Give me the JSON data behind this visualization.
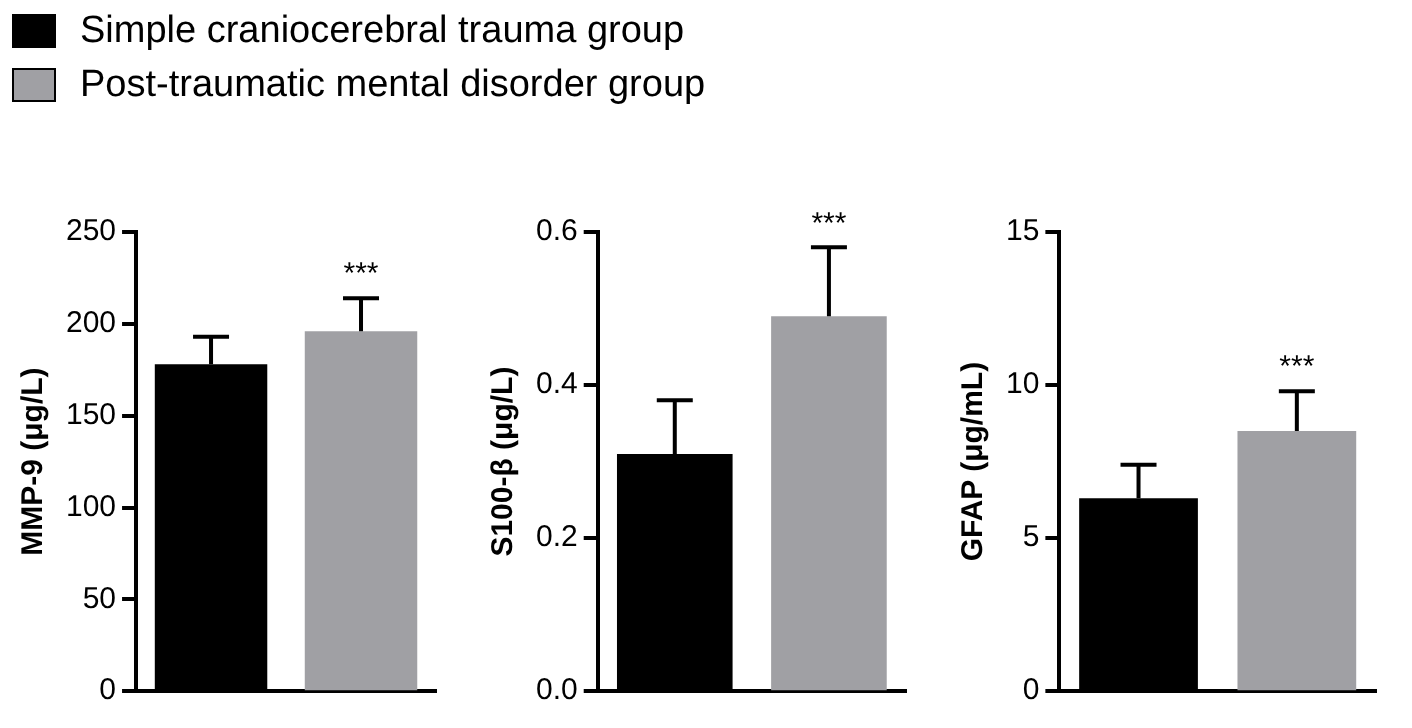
{
  "chart_data": [
    {
      "type": "bar",
      "ylabel": "MMP-9 (μg/L)",
      "categories": [
        null,
        null
      ],
      "ylim": [
        0,
        250
      ],
      "yticks": [
        0,
        50,
        100,
        150,
        200,
        250
      ],
      "grid": false,
      "legend": "top",
      "series": [
        {
          "name": "Simple craniocerebral trauma group",
          "color": "#000000",
          "values": [
            178,
            null
          ],
          "errors": [
            [
              178,
              193
            ],
            null
          ]
        },
        {
          "name": "Post-traumatic mental disorder group",
          "color": "#a0a0a4",
          "values": [
            null,
            196
          ],
          "errors": [
            null,
            [
              196,
              214
            ]
          ]
        }
      ],
      "annotations": [
        "***"
      ]
    },
    {
      "type": "bar",
      "ylabel": "S100-β (μg/L)",
      "categories": [
        null,
        null
      ],
      "ylim": [
        0,
        0.6
      ],
      "yticks": [
        {
          "value": 0,
          "label": "0.0"
        },
        0.2,
        0.4,
        0.6
      ],
      "grid": false,
      "series": [
        {
          "color": "#000000",
          "values": [
            0.31,
            null
          ],
          "errors": [
            [
              0.31,
              0.38
            ],
            null
          ]
        },
        {
          "color": "#a0a0a4",
          "values": [
            null,
            0.49
          ],
          "errors": [
            null,
            [
              0.49,
              0.58
            ]
          ]
        }
      ],
      "annotations": [
        "***"
      ]
    },
    {
      "type": "bar",
      "ylabel": "GFAP (μg/mL)",
      "categories": [
        null,
        null
      ],
      "ylim": [
        0,
        15
      ],
      "yticks": [
        0,
        5,
        10,
        15
      ],
      "grid": false,
      "series": [
        {
          "color": "#000000",
          "values": [
            6.3,
            null
          ],
          "errors": [
            [
              6.3,
              7.4
            ],
            null
          ]
        },
        {
          "color": "#a0a0a4",
          "values": [
            null,
            8.5
          ],
          "errors": [
            null,
            [
              8.5,
              9.8
            ]
          ]
        }
      ],
      "annotations": [
        "***"
      ]
    }
  ]
}
